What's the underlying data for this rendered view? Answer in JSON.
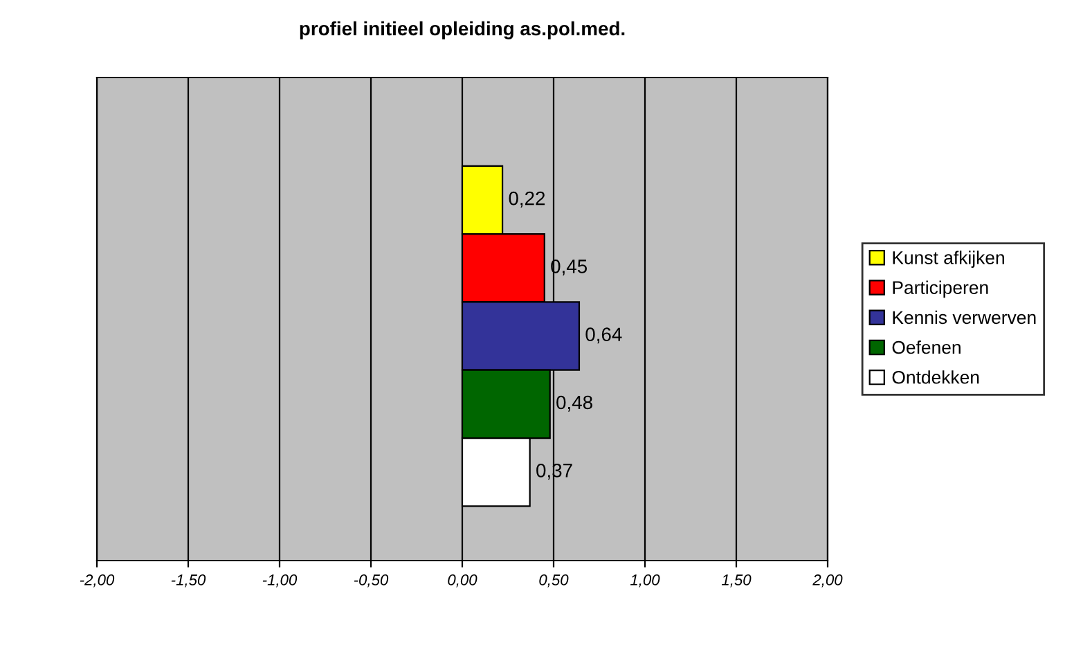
{
  "chart_data": {
    "type": "bar",
    "orientation": "horizontal",
    "title": "profiel initieel opleiding as.pol.med.",
    "categories": [
      null
    ],
    "series": [
      {
        "name": "Kunst afkijken",
        "color": "#ffff00",
        "values": [
          0.22
        ],
        "value_labels": [
          "0,22"
        ]
      },
      {
        "name": "Participeren",
        "color": "#ff0000",
        "values": [
          0.45
        ],
        "value_labels": [
          "0,45"
        ]
      },
      {
        "name": "Kennis verwerven",
        "color": "#333399",
        "values": [
          0.64
        ],
        "value_labels": [
          "0,64"
        ]
      },
      {
        "name": "Oefenen",
        "color": "#006600",
        "values": [
          0.48
        ],
        "value_labels": [
          "0,48"
        ]
      },
      {
        "name": "Ontdekken",
        "color": "#ffffff",
        "values": [
          0.37
        ],
        "value_labels": [
          "0,37"
        ]
      }
    ],
    "xlim": [
      -2,
      2
    ],
    "xticks": [
      {
        "value": -2,
        "label": "-2,00"
      },
      {
        "value": -1.5,
        "label": "-1,50"
      },
      {
        "value": -1,
        "label": "-1,00"
      },
      {
        "value": -0.5,
        "label": "-0,50"
      },
      {
        "value": 0,
        "label": "0,00"
      },
      {
        "value": 0.5,
        "label": "0,50"
      },
      {
        "value": 1,
        "label": "1,00"
      },
      {
        "value": 1.5,
        "label": "1,50"
      },
      {
        "value": 2,
        "label": "2,00"
      }
    ],
    "grid": "x",
    "legend": "right"
  }
}
